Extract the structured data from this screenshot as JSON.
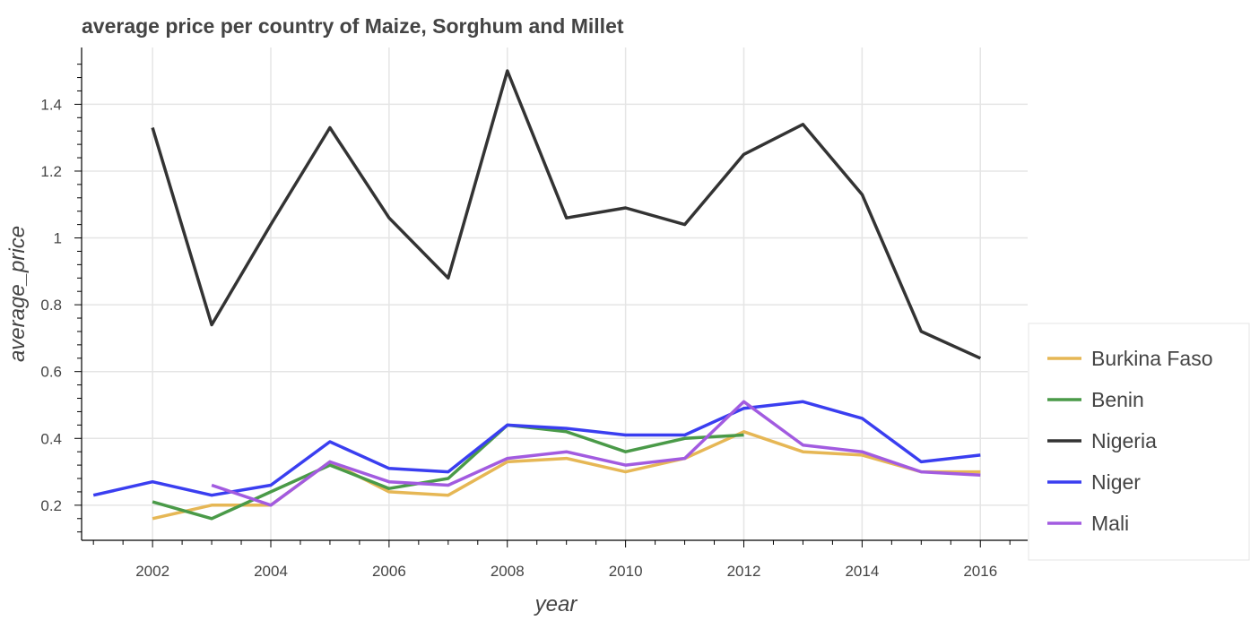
{
  "chart_data": {
    "type": "line",
    "title": "average price per country of Maize, Sorghum and Millet",
    "xlabel": "year",
    "ylabel": "average_price",
    "xlim": [
      2000.8,
      2016.8
    ],
    "ylim": [
      0.095,
      1.57
    ],
    "x_ticks": [
      2002,
      2004,
      2006,
      2008,
      2010,
      2012,
      2014,
      2016
    ],
    "x_tick_labels": [
      "2002",
      "2004",
      "2006",
      "2008",
      "2010",
      "2012",
      "2014",
      "2016"
    ],
    "y_ticks": [
      0.2,
      0.4,
      0.6,
      0.8,
      1.0,
      1.2,
      1.4
    ],
    "y_tick_labels": [
      "0.2",
      "0.4",
      "0.6",
      "0.8",
      "1",
      "1.2",
      "1.4"
    ],
    "grid": true,
    "legend_position": "bottom-right-outside",
    "series": [
      {
        "name": "Burkina Faso",
        "color": "#e6b755",
        "x": [
          2002,
          2003,
          2004,
          2005,
          2006,
          2007,
          2008,
          2009,
          2010,
          2011,
          2012,
          2013,
          2014,
          2015,
          2016
        ],
        "y": [
          0.16,
          0.2,
          0.2,
          0.33,
          0.24,
          0.23,
          0.33,
          0.34,
          0.3,
          0.34,
          0.42,
          0.36,
          0.35,
          0.3,
          0.3
        ]
      },
      {
        "name": "Benin",
        "color": "#4a9a48",
        "x": [
          2002,
          2003,
          2004,
          2005,
          2006,
          2007,
          2008,
          2009,
          2010,
          2011,
          2012
        ],
        "y": [
          0.21,
          0.16,
          0.24,
          0.32,
          0.25,
          0.28,
          0.44,
          0.42,
          0.36,
          0.4,
          0.41
        ]
      },
      {
        "name": "Nigeria",
        "color": "#333333",
        "x": [
          2002,
          2003,
          2004,
          2005,
          2006,
          2007,
          2008,
          2009,
          2010,
          2011,
          2012,
          2013,
          2014,
          2015,
          2016
        ],
        "y": [
          1.33,
          0.74,
          1.04,
          1.33,
          1.06,
          0.88,
          1.5,
          1.06,
          1.09,
          1.04,
          1.25,
          1.34,
          1.13,
          0.72,
          0.64
        ]
      },
      {
        "name": "Niger",
        "color": "#3a3ef0",
        "x": [
          2001,
          2002,
          2003,
          2004,
          2005,
          2006,
          2007,
          2008,
          2009,
          2010,
          2011,
          2012,
          2013,
          2014,
          2015,
          2016
        ],
        "y": [
          0.23,
          0.27,
          0.23,
          0.26,
          0.39,
          0.31,
          0.3,
          0.44,
          0.43,
          0.41,
          0.41,
          0.49,
          0.51,
          0.46,
          0.33,
          0.35
        ]
      },
      {
        "name": "Mali",
        "color": "#a25be0",
        "x": [
          2003,
          2004,
          2005,
          2006,
          2007,
          2008,
          2009,
          2010,
          2011,
          2012,
          2013,
          2014,
          2015,
          2016
        ],
        "y": [
          0.26,
          0.2,
          0.33,
          0.27,
          0.26,
          0.34,
          0.36,
          0.32,
          0.34,
          0.51,
          0.38,
          0.36,
          0.3,
          0.29
        ]
      }
    ]
  }
}
